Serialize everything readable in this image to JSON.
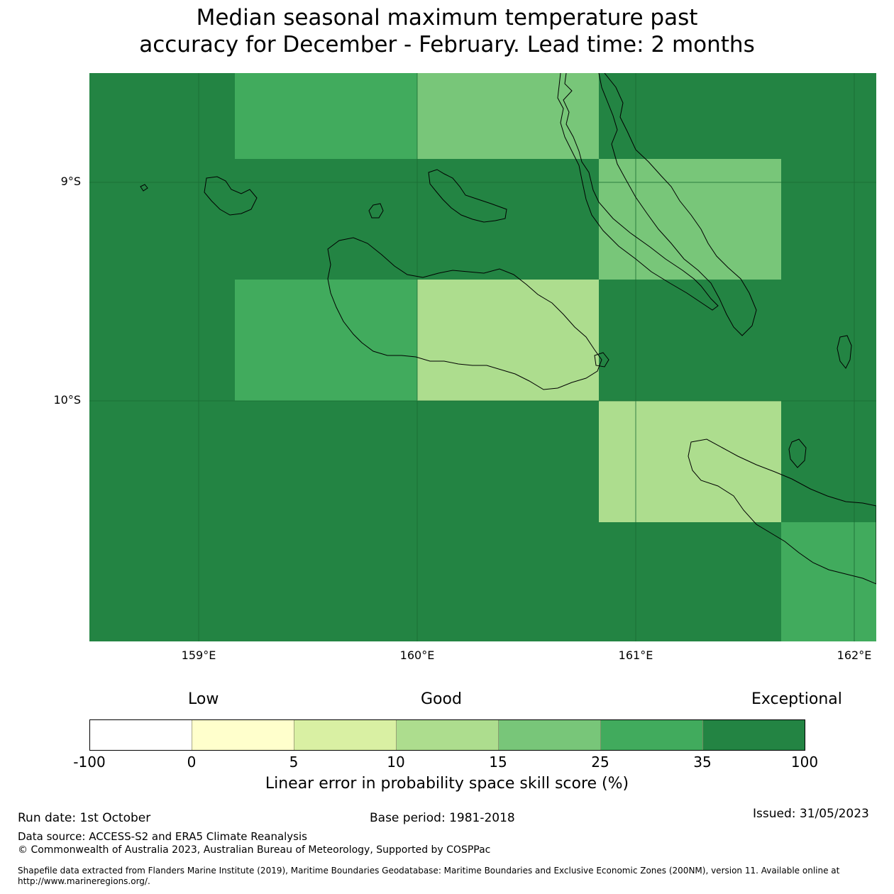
{
  "title": {
    "line1": "Median seasonal maximum temperature past",
    "line2": "accuracy for December - February. Lead time: 2 months"
  },
  "map": {
    "lat_labels": [
      "9°S",
      "10°S"
    ],
    "lon_labels": [
      "159°E",
      "160°E",
      "161°E",
      "162°E"
    ],
    "colors": {
      "c0": "#ffffff",
      "c1": "#ffffcc",
      "c2": "#d9f0a3",
      "c3": "#addd8e",
      "c4": "#78c679",
      "c5": "#41ab5d",
      "c6": "#238443"
    },
    "grid_cells": [
      [
        "c6",
        "c5",
        "c4",
        "c6",
        "c6"
      ],
      [
        "c6",
        "c6",
        "c6",
        "c4",
        "c6"
      ],
      [
        "c6",
        "c5",
        "c3",
        "c6",
        "c6"
      ],
      [
        "c6",
        "c6",
        "c6",
        "c3",
        "c6"
      ],
      [
        "c6",
        "c6",
        "c6",
        "c6",
        "c5"
      ]
    ]
  },
  "legend": {
    "categories": [
      "Low",
      "Good",
      "Exceptional"
    ],
    "ticks": [
      "-100",
      "0",
      "5",
      "10",
      "15",
      "25",
      "35",
      "100"
    ],
    "bin_colors": [
      "#ffffff",
      "#ffffcc",
      "#d9f0a3",
      "#addd8e",
      "#78c679",
      "#41ab5d",
      "#238443"
    ],
    "title": "Linear error in probability space skill score (%)"
  },
  "footer": {
    "run_date": "Run date: 1st October",
    "base_period": "Base period: 1981-2018",
    "issued": "Issued: 31/05/2023",
    "data_source": "Data source: ACCESS-S2 and ERA5 Climate Reanalysis",
    "copyright": "© Commonwealth of Australia 2023, Australian Bureau of Meteorology, Supported by COSPPac",
    "shapefile": "Shapefile data extracted from Flanders Marine Institute (2019), Maritime Boundaries Geodatabase: Maritime Boundaries and Exclusive Economic Zones (200NM), version 11. Available online at http://www.marineregions.org/."
  }
}
